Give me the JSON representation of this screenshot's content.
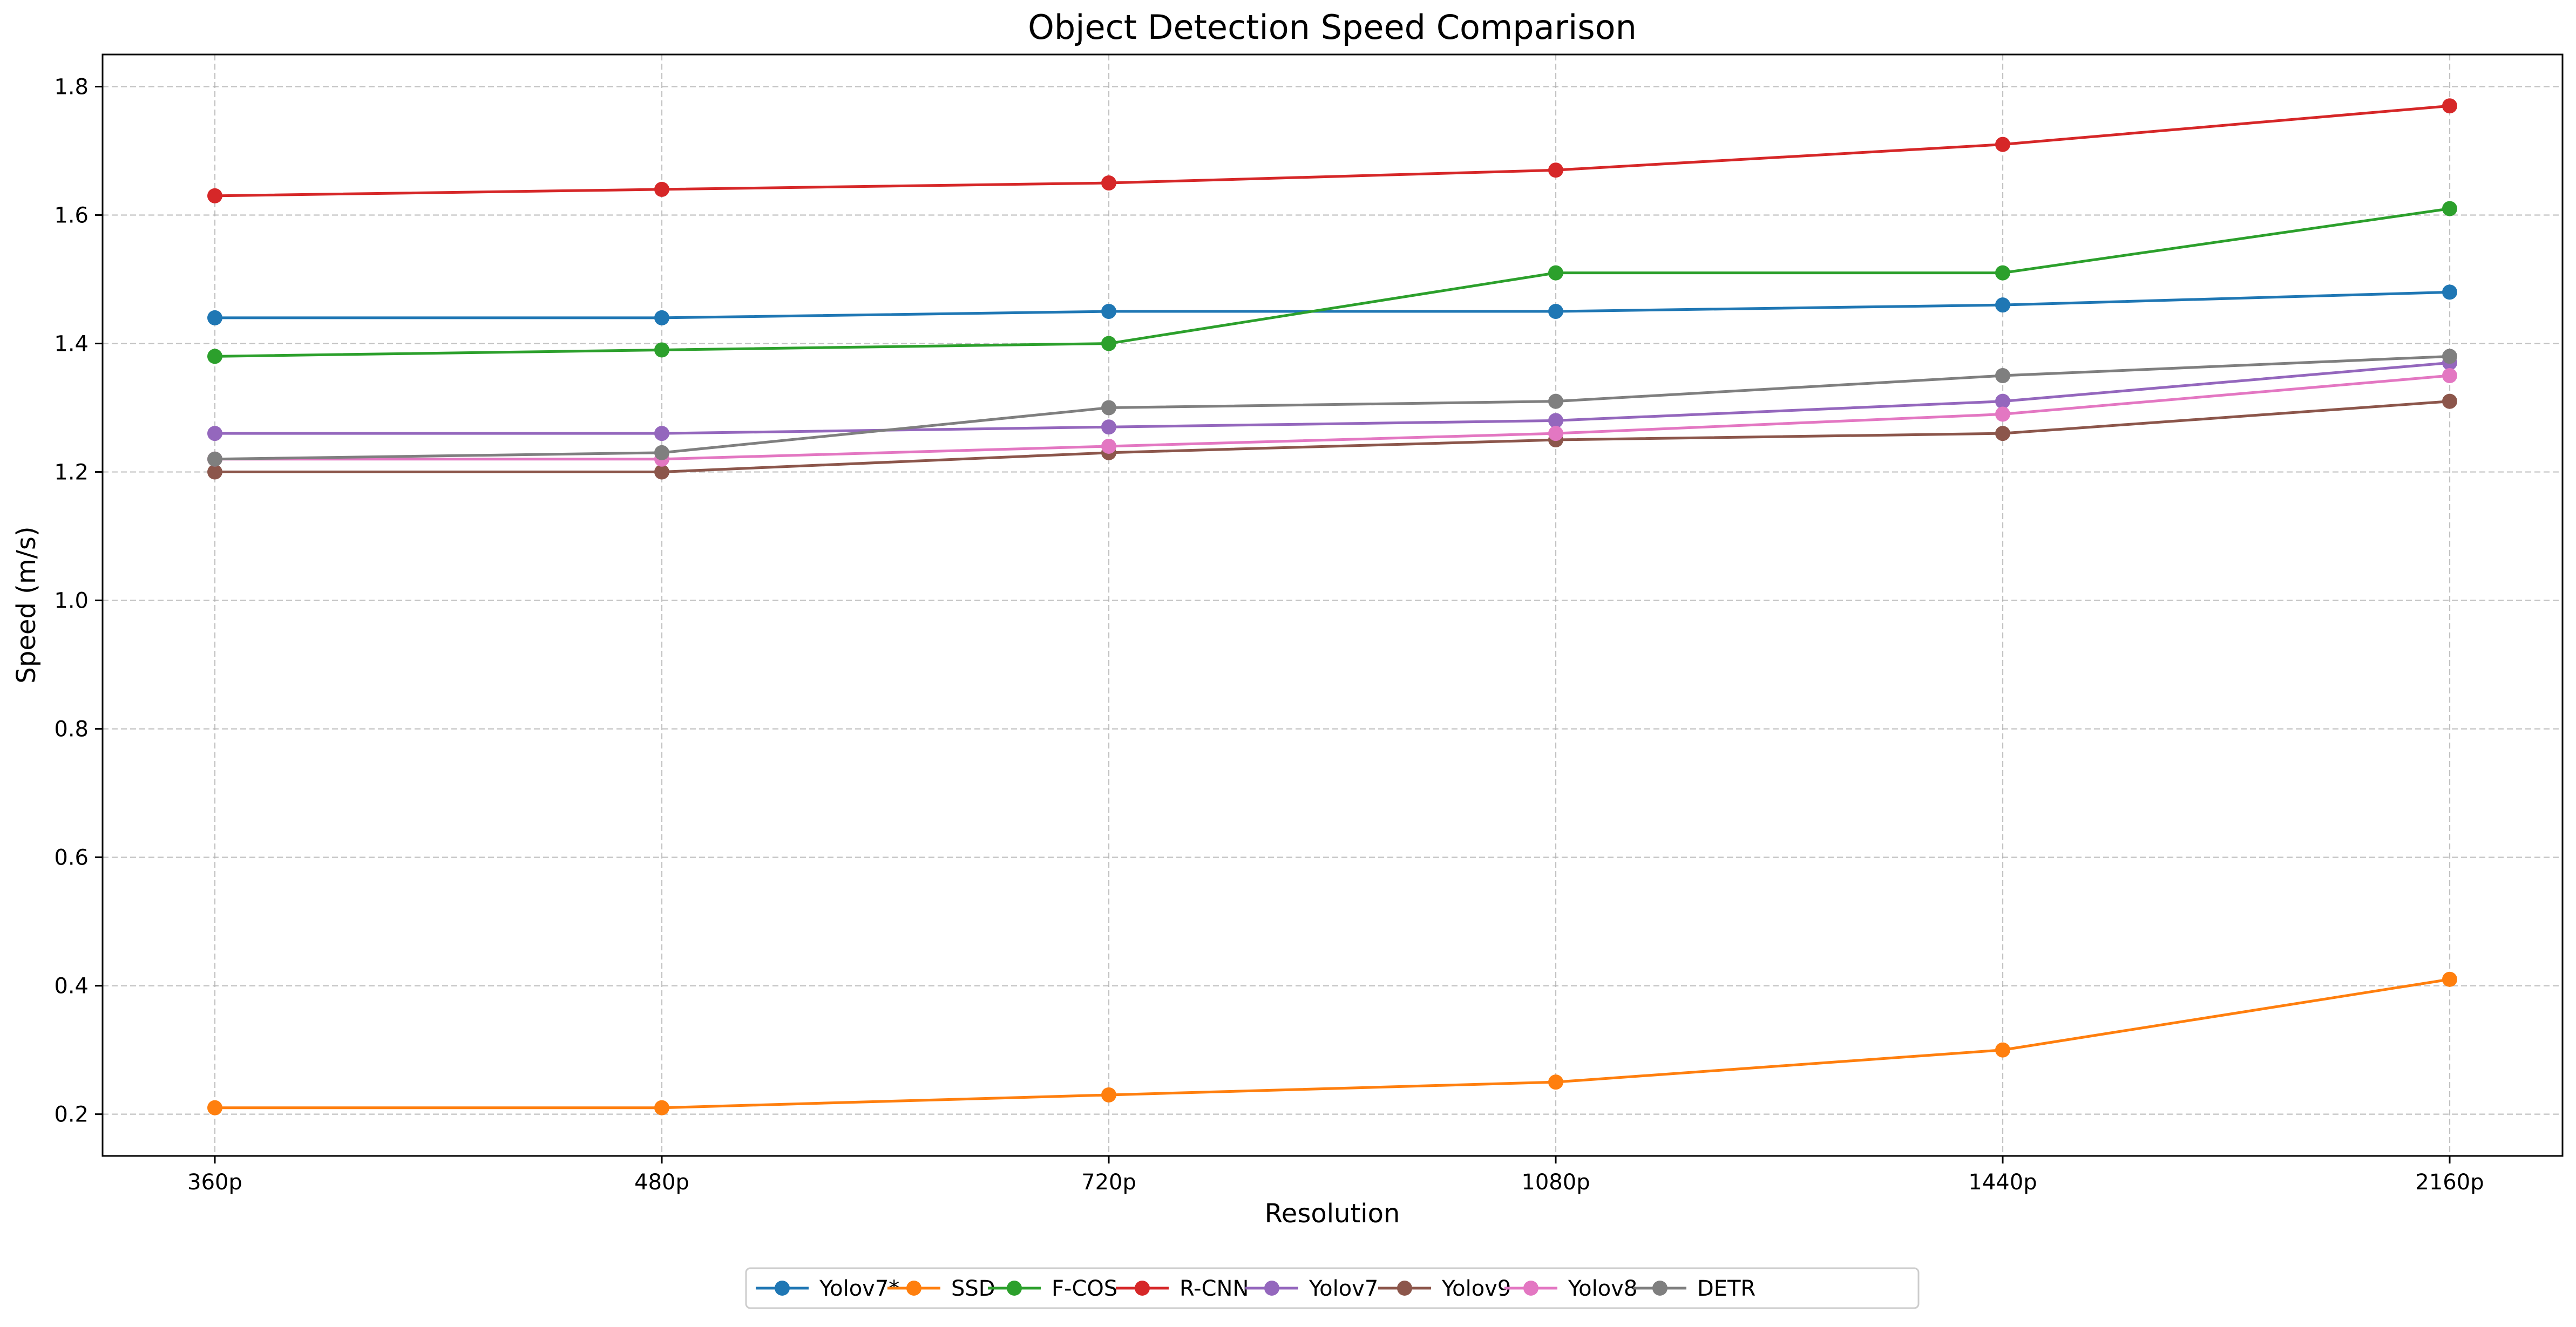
{
  "chart_data": {
    "type": "line",
    "title": "Object Detection Speed Comparison",
    "xlabel": "Resolution",
    "ylabel": "Speed (m/s)",
    "categories": [
      "360p",
      "480p",
      "720p",
      "1080p",
      "1440p",
      "2160p"
    ],
    "ylim": [
      0.135,
      1.85
    ],
    "yticks": [
      0.2,
      0.4,
      0.6,
      0.8,
      1.0,
      1.2,
      1.4,
      1.6,
      1.8
    ],
    "ytick_labels": [
      "0.2",
      "0.4",
      "0.6",
      "0.8",
      "1.0",
      "1.2",
      "1.4",
      "1.6",
      "1.8"
    ],
    "grid": true,
    "legend_position": "bottom-center",
    "series": [
      {
        "name": "Yolov7*",
        "color": "#1f77b4",
        "values": [
          1.44,
          1.44,
          1.45,
          1.45,
          1.46,
          1.48
        ]
      },
      {
        "name": "SSD",
        "color": "#ff7f0e",
        "values": [
          0.21,
          0.21,
          0.23,
          0.25,
          0.3,
          0.41
        ]
      },
      {
        "name": "F-COS",
        "color": "#2ca02c",
        "values": [
          1.38,
          1.39,
          1.4,
          1.51,
          1.51,
          1.61
        ]
      },
      {
        "name": "R-CNN",
        "color": "#d62728",
        "values": [
          1.63,
          1.64,
          1.65,
          1.67,
          1.71,
          1.77
        ]
      },
      {
        "name": "Yolov7",
        "color": "#9467bd",
        "values": [
          1.26,
          1.26,
          1.27,
          1.28,
          1.31,
          1.37
        ]
      },
      {
        "name": "Yolov9",
        "color": "#8c564b",
        "values": [
          1.2,
          1.2,
          1.23,
          1.25,
          1.26,
          1.31
        ]
      },
      {
        "name": "Yolov8",
        "color": "#e377c2",
        "values": [
          1.22,
          1.22,
          1.24,
          1.26,
          1.29,
          1.35
        ]
      },
      {
        "name": "DETR",
        "color": "#7f7f7f",
        "values": [
          1.22,
          1.23,
          1.3,
          1.31,
          1.35,
          1.38
        ]
      }
    ]
  }
}
